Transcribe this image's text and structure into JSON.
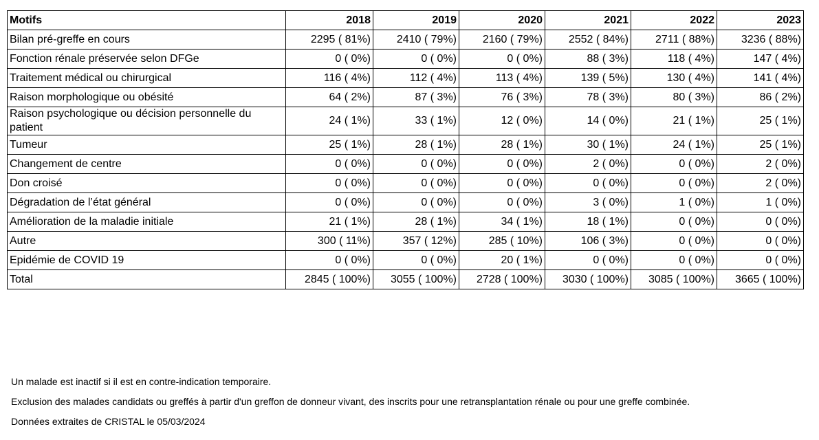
{
  "table": {
    "header": [
      "Motifs",
      "2018",
      "2019",
      "2020",
      "2021",
      "2022",
      "2023"
    ],
    "rows": [
      {
        "label": "Bilan pré-greffe en cours",
        "values": [
          "2295 ( 81%)",
          "2410 ( 79%)",
          "2160 ( 79%)",
          "2552 ( 84%)",
          "2711 ( 88%)",
          "3236 ( 88%)"
        ]
      },
      {
        "label": "Fonction rénale préservée selon DFGe",
        "values": [
          "0 ( 0%)",
          "0 ( 0%)",
          "0 ( 0%)",
          "88 ( 3%)",
          "118 ( 4%)",
          "147 ( 4%)"
        ]
      },
      {
        "label": "Traitement médical ou chirurgical",
        "values": [
          "116 ( 4%)",
          "112 ( 4%)",
          "113 ( 4%)",
          "139 ( 5%)",
          "130 ( 4%)",
          "141 ( 4%)"
        ]
      },
      {
        "label": "Raison morphologique ou obésité",
        "values": [
          "64 ( 2%)",
          "87 ( 3%)",
          "76 ( 3%)",
          "78 ( 3%)",
          "80 ( 3%)",
          "86 ( 2%)"
        ]
      },
      {
        "label": "Raison psychologique ou décision personnelle du patient",
        "values": [
          "24 ( 1%)",
          "33 ( 1%)",
          "12 ( 0%)",
          "14 ( 0%)",
          "21 ( 1%)",
          "25 ( 1%)"
        ]
      },
      {
        "label": "Tumeur",
        "values": [
          "25 ( 1%)",
          "28 ( 1%)",
          "28 ( 1%)",
          "30 ( 1%)",
          "24 ( 1%)",
          "25 ( 1%)"
        ]
      },
      {
        "label": "Changement de centre",
        "values": [
          "0 ( 0%)",
          "0 ( 0%)",
          "0 ( 0%)",
          "2 ( 0%)",
          "0 ( 0%)",
          "2 ( 0%)"
        ]
      },
      {
        "label": "Don croisé",
        "values": [
          "0 ( 0%)",
          "0 ( 0%)",
          "0 ( 0%)",
          "0 ( 0%)",
          "0 ( 0%)",
          "2 ( 0%)"
        ]
      },
      {
        "label": "Dégradation de l’état général",
        "values": [
          "0 ( 0%)",
          "0 ( 0%)",
          "0 ( 0%)",
          "3 ( 0%)",
          "1 ( 0%)",
          "1 ( 0%)"
        ]
      },
      {
        "label": "Amélioration de la maladie initiale",
        "values": [
          "21 ( 1%)",
          "28 ( 1%)",
          "34 ( 1%)",
          "18 ( 1%)",
          "0 ( 0%)",
          "0 ( 0%)"
        ]
      },
      {
        "label": "Autre",
        "values": [
          "300 ( 11%)",
          "357 ( 12%)",
          "285 ( 10%)",
          "106 ( 3%)",
          "0 ( 0%)",
          "0 ( 0%)"
        ]
      },
      {
        "label": "Epidémie de COVID 19",
        "values": [
          "0 ( 0%)",
          "0 ( 0%)",
          "20 ( 1%)",
          "0 ( 0%)",
          "0 ( 0%)",
          "0 ( 0%)"
        ]
      },
      {
        "label": "Total",
        "values": [
          "2845 ( 100%)",
          "3055 ( 100%)",
          "2728 ( 100%)",
          "3030 ( 100%)",
          "3085 ( 100%)",
          "3665 ( 100%)"
        ]
      }
    ]
  },
  "footnotes": [
    "Un malade est inactif si il est en contre-indication temporaire.",
    "Exclusion des malades candidats ou greffés à partir d'un greffon de donneur vivant, des inscrits pour une retransplantation rénale ou pour une greffe combinée.",
    "Données extraites de CRISTAL le 05/03/2024"
  ]
}
